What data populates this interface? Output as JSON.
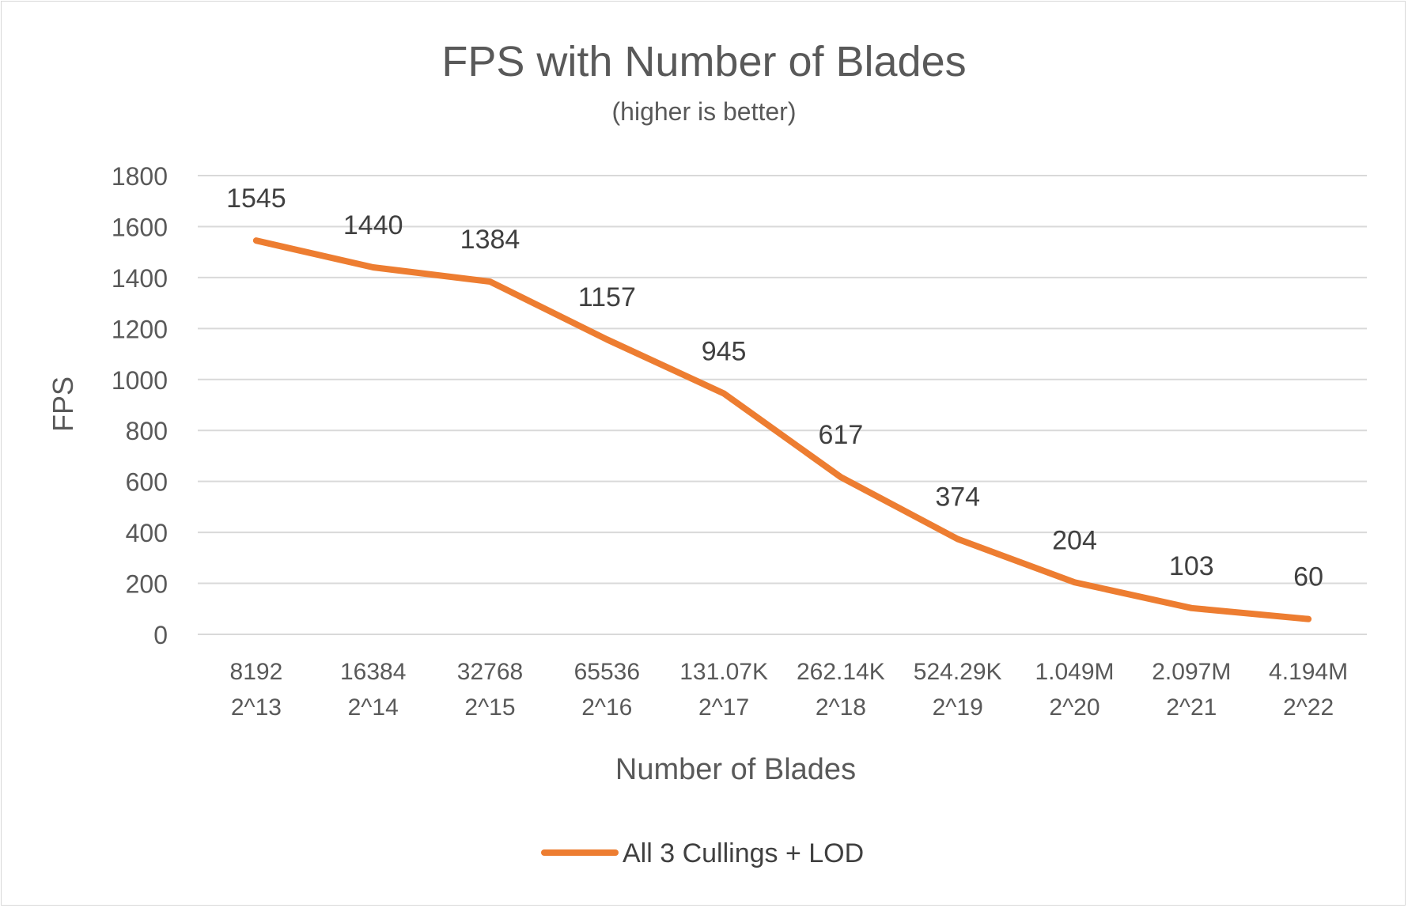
{
  "chart_data": {
    "type": "line",
    "title": "FPS with Number of Blades",
    "subtitle": "(higher is better)",
    "xlabel": "Number of Blades",
    "ylabel": "FPS",
    "categories": [
      [
        "8192",
        "2^13"
      ],
      [
        "16384",
        "2^14"
      ],
      [
        "32768",
        "2^15"
      ],
      [
        "65536",
        "2^16"
      ],
      [
        "131.07K",
        "2^17"
      ],
      [
        "262.14K",
        "2^18"
      ],
      [
        "524.29K",
        "2^19"
      ],
      [
        "1.049M",
        "2^20"
      ],
      [
        "2.097M",
        "2^21"
      ],
      [
        "4.194M",
        "2^22"
      ]
    ],
    "series": [
      {
        "name": "All 3 Cullings + LOD",
        "values": [
          1545,
          1440,
          1384,
          1157,
          945,
          617,
          374,
          204,
          103,
          60
        ],
        "color": "#ED7D31"
      }
    ],
    "ylim": [
      0,
      1800
    ],
    "yticks": [
      0,
      200,
      400,
      600,
      800,
      1000,
      1200,
      1400,
      1600,
      1800
    ],
    "grid": true,
    "data_labels": true,
    "legend_position": "bottom"
  }
}
